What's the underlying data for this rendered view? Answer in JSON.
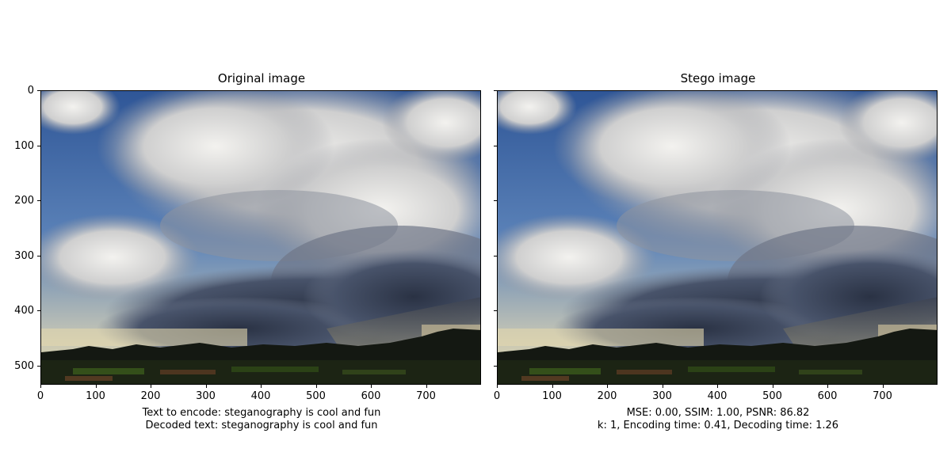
{
  "panels": [
    {
      "title": "Original image",
      "caption_lines": [
        "Text to encode: steganography is cool and fun",
        "Decoded text: steganography is cool and fun"
      ]
    },
    {
      "title": "Stego image",
      "caption_lines": [
        "MSE: 0.00, SSIM: 1.00, PSNR: 86.82",
        "k: 1, Encoding time: 0.41, Decoding time: 1.26"
      ]
    }
  ],
  "axes": {
    "x_ticks": [
      "0",
      "100",
      "200",
      "300",
      "400",
      "500",
      "600",
      "700"
    ],
    "y_ticks": [
      "0",
      "100",
      "200",
      "300",
      "400",
      "500"
    ]
  },
  "scene": {
    "description_colors": {
      "sky_blue": "#3e6aa8",
      "cloud_light": "#e8e6e2",
      "cloud_dark": "#2f3747",
      "horizon": "#d9cfa6",
      "ground": "#1a1f12"
    }
  }
}
